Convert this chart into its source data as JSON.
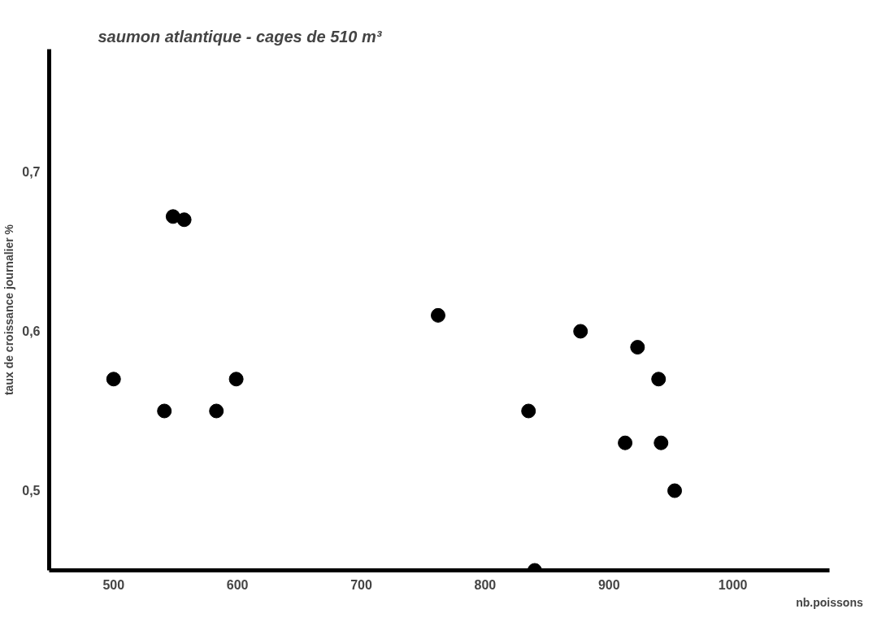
{
  "chart_data": {
    "type": "scatter",
    "title": "saumon atlantique - cages de 510 m³",
    "xlabel": "nb.poissons",
    "ylabel": "taux de croissance journalier %",
    "x": [
      500,
      541,
      548,
      557,
      583,
      599,
      762,
      835,
      840,
      877,
      913,
      923,
      940,
      942,
      953
    ],
    "values": [
      0.57,
      0.55,
      0.672,
      0.67,
      0.55,
      0.57,
      0.61,
      0.55,
      0.45,
      0.6,
      0.53,
      0.59,
      0.57,
      0.53,
      0.5
    ],
    "color": "#000000",
    "marker": "circle",
    "xlim": [
      448,
      1078
    ],
    "ylim": [
      0.45,
      0.777
    ],
    "xticks": [
      500,
      600,
      700,
      800,
      900,
      1000
    ],
    "yticks": [
      {
        "value": 0.5,
        "label": "0,5"
      },
      {
        "value": 0.6,
        "label": "0,6"
      },
      {
        "value": 0.7,
        "label": "0,7"
      }
    ],
    "grid": false
  }
}
